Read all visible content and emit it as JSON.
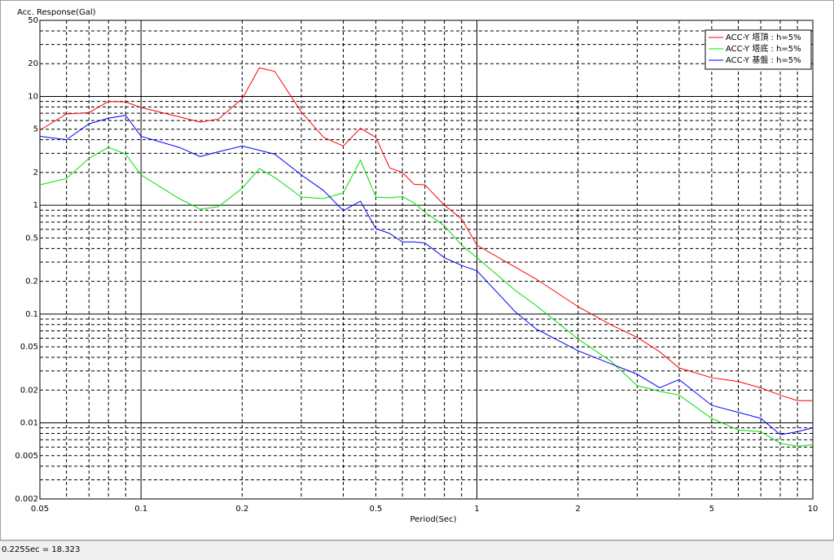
{
  "chart_data": {
    "type": "line",
    "y_label": "Acc. Response(Gal)",
    "x_label": "Period(Sec)",
    "x": [
      0.05,
      0.06,
      0.07,
      0.08,
      0.09,
      0.1,
      0.13,
      0.15,
      0.17,
      0.2,
      0.225,
      0.25,
      0.3,
      0.35,
      0.4,
      0.45,
      0.5,
      0.55,
      0.6,
      0.65,
      0.7,
      0.8,
      0.9,
      1,
      1.3,
      1.5,
      2,
      2.5,
      3,
      3.5,
      4,
      5,
      6,
      7,
      8,
      9,
      10
    ],
    "series": [
      {
        "name": "ACC-Y 塔頂 : h=5%",
        "color": "#ff0000",
        "values": [
          4.9,
          6.9,
          7.1,
          9.0,
          8.9,
          7.9,
          6.5,
          5.8,
          6.2,
          9.5,
          18.3,
          17,
          7.2,
          4.2,
          3.5,
          5.1,
          4.2,
          2.2,
          2.0,
          1.56,
          1.54,
          1.0,
          0.75,
          0.43,
          0.27,
          0.21,
          0.117,
          0.08,
          0.061,
          0.045,
          0.032,
          0.026,
          0.024,
          0.021,
          0.018,
          0.016,
          0.016
        ]
      },
      {
        "name": "ACC-Y 塔底 : h=5%",
        "color": "#00e000",
        "values": [
          1.54,
          1.76,
          2.7,
          3.4,
          2.95,
          1.9,
          1.15,
          0.92,
          0.97,
          1.43,
          2.17,
          1.8,
          1.19,
          1.15,
          1.3,
          2.6,
          1.19,
          1.17,
          1.2,
          1.05,
          0.86,
          0.65,
          0.43,
          0.33,
          0.165,
          0.12,
          0.059,
          0.037,
          0.022,
          0.0195,
          0.018,
          0.011,
          0.0086,
          0.0083,
          0.0065,
          0.0061,
          0.0063
        ]
      },
      {
        "name": "ACC-Y 基盤 : h=5%",
        "color": "#0000ff",
        "values": [
          4.3,
          4.0,
          5.6,
          6.3,
          6.7,
          4.3,
          3.4,
          2.8,
          3.1,
          3.5,
          3.2,
          2.95,
          1.9,
          1.36,
          0.89,
          1.09,
          0.61,
          0.55,
          0.46,
          0.46,
          0.45,
          0.33,
          0.28,
          0.25,
          0.105,
          0.073,
          0.046,
          0.035,
          0.028,
          0.021,
          0.025,
          0.0145,
          0.0125,
          0.011,
          0.0078,
          0.0083,
          0.009
        ]
      }
    ],
    "xlim": [
      0.05,
      10
    ],
    "ylim": [
      0.002,
      50
    ],
    "xticks": [
      0.05,
      0.1,
      0.2,
      0.5,
      1,
      2,
      5,
      10
    ],
    "yticks": [
      50,
      20,
      10,
      5,
      2,
      1,
      0.5,
      0.2,
      0.1,
      0.05,
      0.02,
      0.01,
      0.005,
      0.002
    ],
    "xscale": "log",
    "yscale": "log",
    "grid": true,
    "legend": "upper right"
  },
  "status_bar": "0.225Sec = 18.323"
}
